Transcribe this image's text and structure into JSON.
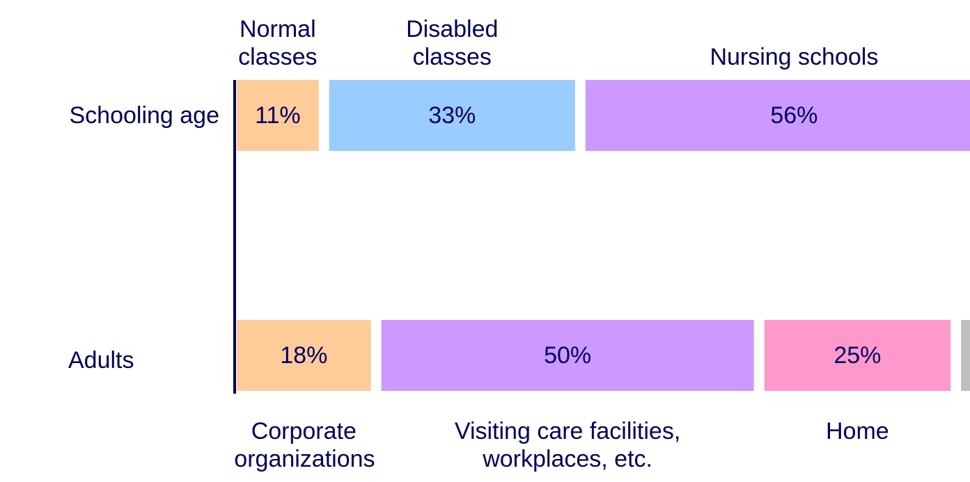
{
  "chart_data": {
    "type": "bar",
    "orientation": "horizontal",
    "stacked": true,
    "categories": [
      "Schooling age",
      "Adults"
    ],
    "rows": [
      {
        "segments": [
          {
            "name": "Normal classes",
            "value": 11,
            "value_label": "11%",
            "color": "#ffcc99"
          },
          {
            "name": "Disabled classes",
            "value": 33,
            "value_label": "33%",
            "color": "#99ccff"
          },
          {
            "name": "Nursing schools",
            "value": 56,
            "value_label": "56%",
            "color": "#cc99ff"
          }
        ]
      },
      {
        "segments": [
          {
            "name": "Corporate organizations",
            "value": 18,
            "value_label": "18%",
            "color": "#ffcc99"
          },
          {
            "name": "Visiting care facilities, workplaces, etc.",
            "value": 50,
            "value_label": "50%",
            "color": "#cc99ff"
          },
          {
            "name": "Home",
            "value": 25,
            "value_label": "25%",
            "color": "#ff99cc"
          },
          {
            "value": 7,
            "color": "#c0c0c0"
          }
        ]
      }
    ]
  }
}
